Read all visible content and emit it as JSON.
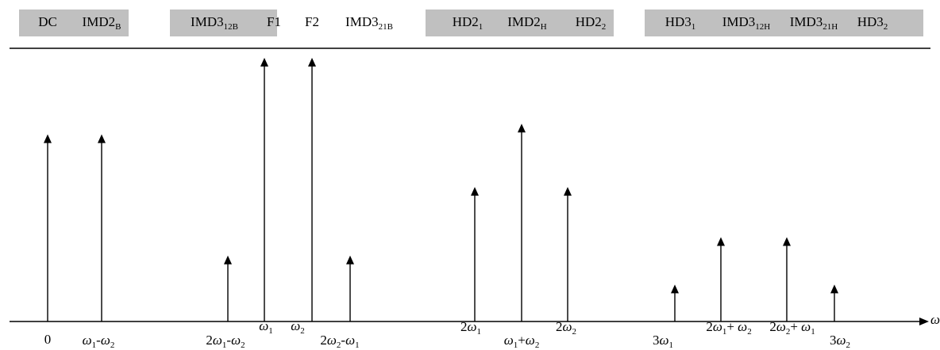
{
  "header_groups": [
    {
      "labels": [
        {
          "text": "DC"
        },
        {
          "text": "IMD2",
          "sub": "B"
        }
      ]
    },
    {
      "labels": [
        {
          "text": "IMD3",
          "sub": "12B"
        },
        {
          "text": "F1"
        },
        {
          "text": "F2"
        },
        {
          "text": "IMD3",
          "sub": "21B"
        }
      ]
    },
    {
      "labels": [
        {
          "text": "HD2",
          "sub": "1"
        },
        {
          "text": "IMD2",
          "sub": "H"
        },
        {
          "text": "HD2",
          "sub": "2"
        }
      ]
    },
    {
      "labels": [
        {
          "text": "HD3",
          "sub": "1"
        },
        {
          "text": "IMD3",
          "sub": "12H"
        },
        {
          "text": "IMD3",
          "sub": "21H"
        },
        {
          "text": "HD3",
          "sub": "2"
        }
      ]
    }
  ],
  "axis_label": "ω",
  "spectral_lines": [
    {
      "id": "dc",
      "label": [
        {
          "t": "0"
        }
      ],
      "amplitude": 0.71
    },
    {
      "id": "imd2b",
      "label": [
        {
          "t": "ω",
          "i": true
        },
        {
          "t": "1",
          "s": true
        },
        {
          "t": "-"
        },
        {
          "t": "ω",
          "i": true
        },
        {
          "t": "2",
          "s": true
        }
      ],
      "amplitude": 0.71
    },
    {
      "id": "imd3-12b",
      "label": [
        {
          "t": "2"
        },
        {
          "t": "ω",
          "i": true
        },
        {
          "t": "1",
          "s": true
        },
        {
          "t": "-"
        },
        {
          "t": "ω",
          "i": true
        },
        {
          "t": "2",
          "s": true
        }
      ],
      "amplitude": 0.25
    },
    {
      "id": "f1",
      "label": [
        {
          "t": "ω",
          "i": true
        },
        {
          "t": "1",
          "s": true
        }
      ],
      "amplitude": 1.0
    },
    {
      "id": "f2",
      "label": [
        {
          "t": "ω",
          "i": true
        },
        {
          "t": "2",
          "s": true
        }
      ],
      "amplitude": 1.0
    },
    {
      "id": "imd3-21b",
      "label": [
        {
          "t": "2"
        },
        {
          "t": "ω",
          "i": true
        },
        {
          "t": "2",
          "s": true
        },
        {
          "t": "-"
        },
        {
          "t": "ω",
          "i": true
        },
        {
          "t": "1",
          "s": true
        }
      ],
      "amplitude": 0.25
    },
    {
      "id": "hd2-1",
      "label": [
        {
          "t": "2"
        },
        {
          "t": "ω",
          "i": true
        },
        {
          "t": "1",
          "s": true
        }
      ],
      "amplitude": 0.51
    },
    {
      "id": "imd2h",
      "label": [
        {
          "t": "ω",
          "i": true
        },
        {
          "t": "1",
          "s": true
        },
        {
          "t": "+"
        },
        {
          "t": "ω",
          "i": true
        },
        {
          "t": "2",
          "s": true
        }
      ],
      "amplitude": 0.75
    },
    {
      "id": "hd2-2",
      "label": [
        {
          "t": "2"
        },
        {
          "t": "ω",
          "i": true
        },
        {
          "t": "2",
          "s": true
        }
      ],
      "amplitude": 0.51
    },
    {
      "id": "hd3-1",
      "label": [
        {
          "t": "3"
        },
        {
          "t": "ω",
          "i": true
        },
        {
          "t": "1",
          "s": true
        }
      ],
      "amplitude": 0.14
    },
    {
      "id": "imd3-12h",
      "label": [
        {
          "t": "2"
        },
        {
          "t": "ω",
          "i": true
        },
        {
          "t": "1",
          "s": true
        },
        {
          "t": "+ "
        },
        {
          "t": "ω",
          "i": true
        },
        {
          "t": "2",
          "s": true
        }
      ],
      "amplitude": 0.32
    },
    {
      "id": "imd3-21h",
      "label": [
        {
          "t": "2"
        },
        {
          "t": "ω",
          "i": true
        },
        {
          "t": "2",
          "s": true
        },
        {
          "t": "+ "
        },
        {
          "t": "ω",
          "i": true
        },
        {
          "t": "1",
          "s": true
        }
      ],
      "amplitude": 0.32
    },
    {
      "id": "hd3-2",
      "label": [
        {
          "t": "3"
        },
        {
          "t": "ω",
          "i": true
        },
        {
          "t": "2",
          "s": true
        }
      ],
      "amplitude": 0.14
    }
  ]
}
